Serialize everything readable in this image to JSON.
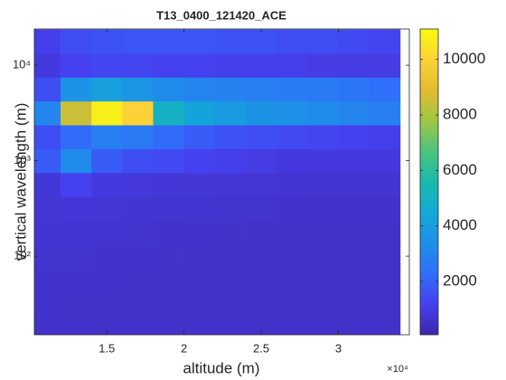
{
  "chart_data": {
    "type": "heatmap",
    "title": "T13_0400_121420_ACE",
    "xlabel": "altitude (m)",
    "ylabel": "vertical wavelength (m)",
    "x_exponent": "×10⁴",
    "x": [
      11000,
      13000,
      15000,
      17000,
      19000,
      21000,
      23000,
      25000,
      27000,
      29000,
      31000,
      33000
    ],
    "y": [
      18,
      32,
      56,
      100,
      178,
      316,
      562,
      1000,
      1778,
      3162,
      5623,
      10000,
      17783
    ],
    "z": [
      [
        600,
        600,
        600,
        600,
        600,
        600,
        600,
        600,
        600,
        600,
        600,
        600
      ],
      [
        620,
        610,
        600,
        600,
        600,
        600,
        600,
        600,
        600,
        600,
        600,
        600
      ],
      [
        640,
        630,
        620,
        610,
        600,
        600,
        600,
        600,
        600,
        600,
        600,
        600
      ],
      [
        660,
        650,
        640,
        620,
        610,
        600,
        600,
        600,
        600,
        600,
        600,
        600
      ],
      [
        700,
        700,
        680,
        650,
        630,
        620,
        610,
        600,
        600,
        600,
        600,
        600
      ],
      [
        750,
        800,
        760,
        720,
        700,
        680,
        660,
        650,
        640,
        630,
        620,
        620
      ],
      [
        800,
        1200,
        900,
        850,
        800,
        780,
        760,
        740,
        720,
        700,
        700,
        700
      ],
      [
        1800,
        3200,
        1800,
        1500,
        1400,
        1200,
        1100,
        1000,
        900,
        900,
        900,
        900
      ],
      [
        1500,
        2200,
        2800,
        2600,
        2200,
        1800,
        1600,
        1500,
        1400,
        1300,
        1200,
        1100
      ],
      [
        3000,
        8500,
        10800,
        10000,
        5000,
        4200,
        3800,
        3500,
        3400,
        3200,
        3000,
        2800
      ],
      [
        1500,
        3500,
        4000,
        3600,
        3200,
        3000,
        2900,
        2800,
        2700,
        2600,
        2500,
        2300
      ],
      [
        900,
        1200,
        1300,
        1300,
        1200,
        1200,
        1100,
        1100,
        1100,
        1000,
        1000,
        1000
      ],
      [
        1100,
        1500,
        1600,
        1700,
        1700,
        1700,
        1600,
        1600,
        1500,
        1500,
        1400,
        1300
      ]
    ],
    "xlim": [
      10300,
      34600
    ],
    "xticks": [
      {
        "value": 15000,
        "label": "1.5"
      },
      {
        "value": 20000,
        "label": "2"
      },
      {
        "value": 25000,
        "label": "2.5"
      },
      {
        "value": 30000,
        "label": "3"
      }
    ],
    "ylim": [
      15,
      24000
    ],
    "yscale": "log",
    "yticks": [
      {
        "value": 100,
        "label": "10²"
      },
      {
        "value": 1000,
        "label": "10³"
      },
      {
        "value": 10000,
        "label": "10⁴"
      }
    ],
    "clim": [
      75,
      11100
    ],
    "cticks": [
      2000,
      4000,
      6000,
      8000,
      10000
    ],
    "colormap": "parula"
  }
}
